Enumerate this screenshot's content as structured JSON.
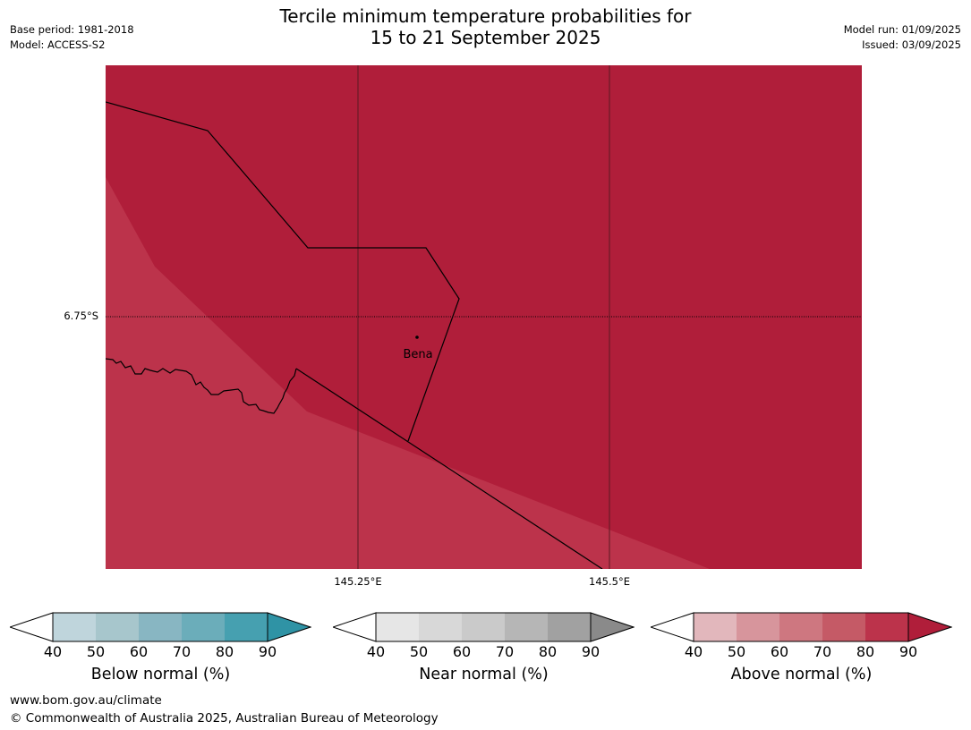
{
  "title_line1": "Tercile minimum temperature probabilities for",
  "title_line2": "15 to 21 September 2025",
  "base_period": "Base period: 1981-2018",
  "model": "Model: ACCESS-S2",
  "model_run": "Model run: 01/09/2025",
  "issued": "Issued: 03/09/2025",
  "map": {
    "place_label": "Bena",
    "lat_label": "6.75°S",
    "lon_labels": [
      "145.25°E",
      "145.5°E"
    ],
    "colors": {
      "above_90": "#b01e3a",
      "above_80": "#bc334b"
    }
  },
  "legends": [
    {
      "title": "Below normal (%)",
      "ticks": [
        "40",
        "50",
        "60",
        "70",
        "80",
        "90"
      ],
      "colors": [
        "#bfd5dc",
        "#a7c6cc",
        "#88b6c2",
        "#6badba",
        "#46a0b0",
        "#2f93a5"
      ]
    },
    {
      "title": "Near normal (%)",
      "ticks": [
        "40",
        "50",
        "60",
        "70",
        "80",
        "90"
      ],
      "colors": [
        "#e6e6e6",
        "#d8d8d8",
        "#cacaca",
        "#b6b6b6",
        "#a1a1a1",
        "#8a8a8a"
      ]
    },
    {
      "title": "Above normal (%)",
      "ticks": [
        "40",
        "50",
        "60",
        "70",
        "80",
        "90"
      ],
      "colors": [
        "#e2b7bc",
        "#d7959c",
        "#ce7780",
        "#c55a66",
        "#bc334b",
        "#b01e3a"
      ]
    }
  ],
  "footer_url": "www.bom.gov.au/climate",
  "footer_copyright": "© Commonwealth of Australia 2025, Australian Bureau of Meteorology"
}
